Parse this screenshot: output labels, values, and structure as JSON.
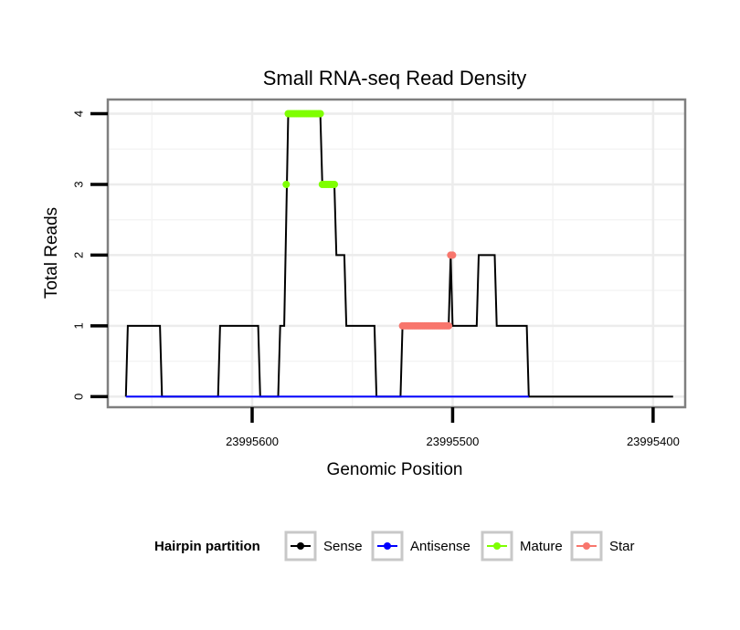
{
  "chart_data": {
    "type": "line",
    "title": "Small RNA-seq Read Density",
    "xlabel": "Genomic Position",
    "ylabel": "Total Reads",
    "x_reversed": true,
    "xlim": [
      23995672,
      23995384
    ],
    "ylim": [
      -0.15,
      4.2
    ],
    "x_ticks": [
      23995600,
      23995500,
      23995400
    ],
    "x_tick_labels": [
      "23995600",
      "23995500",
      "23995400"
    ],
    "y_ticks": [
      0,
      1,
      2,
      3,
      4
    ],
    "y_tick_labels": [
      "0",
      "1",
      "2",
      "3",
      "4"
    ],
    "grid": true,
    "legend": {
      "title": "Hairpin partition",
      "position": "bottom",
      "entries": [
        {
          "label": "Sense",
          "color": "#000000"
        },
        {
          "label": "Antisense",
          "color": "#0000ff"
        },
        {
          "label": "Mature",
          "color": "#7fff00"
        },
        {
          "label": "Star",
          "color": "#f8766d"
        }
      ]
    },
    "series": [
      {
        "name": "Sense",
        "color": "#000000",
        "points": [
          [
            23995663,
            0
          ],
          [
            23995662,
            1
          ],
          [
            23995646,
            1
          ],
          [
            23995645,
            0
          ],
          [
            23995617,
            0
          ],
          [
            23995616,
            1
          ],
          [
            23995597,
            1
          ],
          [
            23995596,
            0
          ],
          [
            23995587,
            0
          ],
          [
            23995586,
            1
          ],
          [
            23995584,
            1
          ],
          [
            23995582,
            4
          ],
          [
            23995566,
            4
          ],
          [
            23995565,
            3
          ],
          [
            23995559,
            3
          ],
          [
            23995558,
            2
          ],
          [
            23995554,
            2
          ],
          [
            23995553,
            1
          ],
          [
            23995539,
            1
          ],
          [
            23995538,
            0
          ],
          [
            23995526,
            0
          ],
          [
            23995525,
            1
          ],
          [
            23995502,
            1
          ],
          [
            23995501,
            2
          ],
          [
            23995500,
            1
          ],
          [
            23995488,
            1
          ],
          [
            23995487,
            2
          ],
          [
            23995479,
            2
          ],
          [
            23995478,
            1
          ],
          [
            23995463,
            1
          ],
          [
            23995462,
            0
          ],
          [
            23995390,
            0
          ]
        ]
      },
      {
        "name": "Antisense",
        "color": "#0000ff",
        "points": [
          [
            23995663,
            0
          ],
          [
            23995462,
            0
          ]
        ]
      },
      {
        "name": "Mature",
        "color": "#7fff00",
        "points": [
          [
            23995583,
            3
          ],
          [
            23995582,
            4
          ],
          [
            23995581,
            4
          ],
          [
            23995580,
            4
          ],
          [
            23995579,
            4
          ],
          [
            23995578,
            4
          ],
          [
            23995577,
            4
          ],
          [
            23995576,
            4
          ],
          [
            23995575,
            4
          ],
          [
            23995574,
            4
          ],
          [
            23995573,
            4
          ],
          [
            23995572,
            4
          ],
          [
            23995571,
            4
          ],
          [
            23995570,
            4
          ],
          [
            23995569,
            4
          ],
          [
            23995568,
            4
          ],
          [
            23995567,
            4
          ],
          [
            23995566,
            4
          ],
          [
            23995565,
            3
          ],
          [
            23995564,
            3
          ],
          [
            23995563,
            3
          ],
          [
            23995562,
            3
          ],
          [
            23995561,
            3
          ],
          [
            23995560,
            3
          ],
          [
            23995559,
            3
          ]
        ]
      },
      {
        "name": "Star",
        "color": "#f8766d",
        "points": [
          [
            23995525,
            1
          ],
          [
            23995524,
            1
          ],
          [
            23995523,
            1
          ],
          [
            23995522,
            1
          ],
          [
            23995521,
            1
          ],
          [
            23995520,
            1
          ],
          [
            23995519,
            1
          ],
          [
            23995518,
            1
          ],
          [
            23995517,
            1
          ],
          [
            23995516,
            1
          ],
          [
            23995515,
            1
          ],
          [
            23995514,
            1
          ],
          [
            23995513,
            1
          ],
          [
            23995512,
            1
          ],
          [
            23995511,
            1
          ],
          [
            23995510,
            1
          ],
          [
            23995509,
            1
          ],
          [
            23995508,
            1
          ],
          [
            23995507,
            1
          ],
          [
            23995506,
            1
          ],
          [
            23995505,
            1
          ],
          [
            23995504,
            1
          ],
          [
            23995503,
            1
          ],
          [
            23995502,
            1
          ],
          [
            23995501,
            2
          ],
          [
            23995500,
            2
          ]
        ]
      }
    ]
  }
}
